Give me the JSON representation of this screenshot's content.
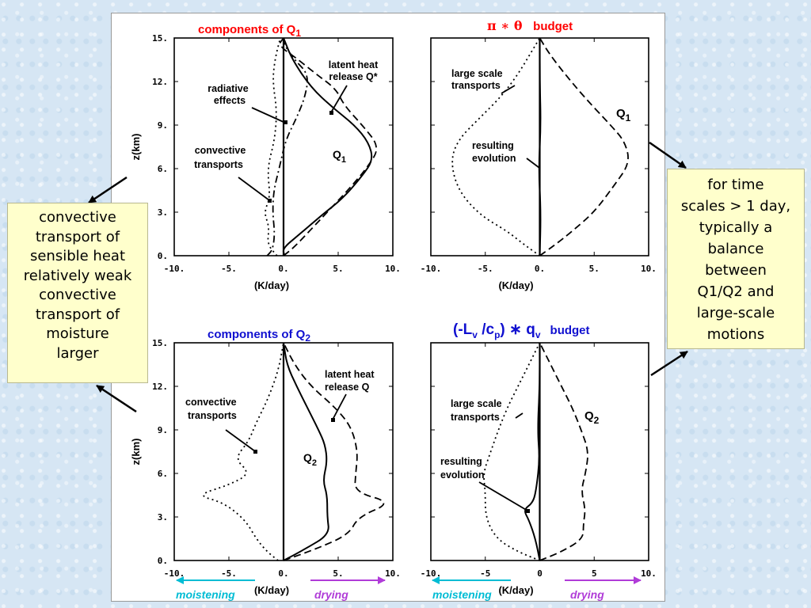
{
  "left_note": {
    "lines": [
      "convective",
      "transport of",
      "sensible heat",
      "relatively weak",
      "convective",
      "transport of",
      "moisture",
      "larger"
    ]
  },
  "right_note": {
    "lines": [
      "for time",
      "scales > 1 day,",
      "typically a",
      "balance",
      "between",
      "Q1/Q2 and",
      "large-scale",
      "motions"
    ]
  },
  "bottom_labels": {
    "moistening": "moistening",
    "drying": "drying",
    "moistening_color": "#00bcd4",
    "drying_color": "#b03cd8"
  },
  "colors": {
    "title_red": "#ff0000",
    "title_blue": "#1010d0"
  },
  "chart_data": [
    {
      "type": "line",
      "title": "components of Q1",
      "xlabel": "(K/day)",
      "ylabel": "z(km)",
      "xlim": [
        -10,
        10
      ],
      "ylim": [
        0,
        15
      ],
      "xticks": [
        "-10.",
        "-5.",
        "0.",
        "5.",
        "10."
      ],
      "yticks": [
        "0.",
        "3.",
        "6.",
        "9.",
        "12.",
        "15."
      ],
      "annotations": [
        "radiative effects",
        "latent heat release Q*",
        "convective transports",
        "Q1"
      ],
      "series": [
        {
          "style": "solid",
          "points": [
            [
              0.1,
              0
            ],
            [
              -0.1,
              0.5
            ],
            [
              1.5,
              1.5
            ],
            [
              3.5,
              2.8
            ],
            [
              5.5,
              4
            ],
            [
              7.2,
              5.5
            ],
            [
              8.2,
              6.6
            ],
            [
              7.8,
              7.8
            ],
            [
              6.5,
              9
            ],
            [
              4.5,
              10.2
            ],
            [
              2.5,
              11.6
            ],
            [
              0.8,
              13.5
            ],
            [
              0,
              15
            ]
          ]
        },
        {
          "style": "dashed",
          "points": [
            [
              0,
              0
            ],
            [
              1,
              0.6
            ],
            [
              2.5,
              1.8
            ],
            [
              4,
              3
            ],
            [
              6,
              4.6
            ],
            [
              7.8,
              6.2
            ],
            [
              8.8,
              7.5
            ],
            [
              7.2,
              9
            ],
            [
              5.5,
              10.4
            ],
            [
              4.8,
              11.5
            ],
            [
              3,
              12.5
            ],
            [
              1.2,
              13.6
            ],
            [
              -0.5,
              14.5
            ],
            [
              0,
              15
            ]
          ]
        },
        {
          "style": "dash-dot",
          "points": [
            [
              -1.5,
              0
            ],
            [
              -1,
              0.4
            ],
            [
              -0.8,
              1.5
            ],
            [
              -1,
              3
            ],
            [
              -0.9,
              4.5
            ],
            [
              -0.4,
              6
            ],
            [
              0.2,
              8
            ],
            [
              1.2,
              9.5
            ],
            [
              2,
              11
            ],
            [
              2.3,
              12.5
            ],
            [
              1,
              13.5
            ],
            [
              0,
              14.6
            ],
            [
              0,
              15
            ]
          ]
        },
        {
          "style": "dotted",
          "points": [
            [
              -0.6,
              0
            ],
            [
              -1.5,
              0.8
            ],
            [
              -1.3,
              2
            ],
            [
              -1.8,
              3
            ],
            [
              -1.2,
              4
            ],
            [
              -1.5,
              6
            ],
            [
              -0.8,
              8
            ],
            [
              -0.6,
              10
            ],
            [
              -1,
              12
            ],
            [
              -0.8,
              13.5
            ],
            [
              -0.3,
              15
            ]
          ]
        }
      ]
    },
    {
      "type": "line",
      "title": "π * θ budget",
      "xlabel": "(K/day)",
      "ylabel": "",
      "xlim": [
        -10,
        10
      ],
      "ylim": [
        0,
        15
      ],
      "xticks": [
        "-10.",
        "-5.",
        "0.",
        "5.",
        "10."
      ],
      "yticks": [],
      "annotations": [
        "large scale transports",
        "Q1",
        "resulting evolution"
      ],
      "series": [
        {
          "style": "dashed",
          "points": [
            [
              0,
              0
            ],
            [
              1.5,
              0.8
            ],
            [
              3,
              1.7
            ],
            [
              5,
              3
            ],
            [
              6.8,
              4.8
            ],
            [
              8.3,
              6.4
            ],
            [
              7.8,
              7.9
            ],
            [
              6.5,
              9
            ],
            [
              4,
              11
            ],
            [
              2,
              12.8
            ],
            [
              0.8,
              14
            ],
            [
              0,
              15
            ]
          ]
        },
        {
          "style": "dotted",
          "points": [
            [
              0,
              0
            ],
            [
              -1.5,
              0.8
            ],
            [
              -3,
              1.7
            ],
            [
              -5.5,
              2.8
            ],
            [
              -7.5,
              4.5
            ],
            [
              -8.2,
              6.5
            ],
            [
              -7.5,
              8
            ],
            [
              -5.5,
              9.5
            ],
            [
              -3.5,
              11
            ],
            [
              -2,
              12.5
            ],
            [
              -0.8,
              14
            ],
            [
              0,
              15
            ]
          ]
        },
        {
          "style": "solid",
          "points": [
            [
              0,
              0
            ],
            [
              0.1,
              3
            ],
            [
              -0.1,
              6
            ],
            [
              0.1,
              9
            ],
            [
              0,
              12
            ],
            [
              0,
              15
            ]
          ]
        }
      ]
    },
    {
      "type": "line",
      "title": "components of Q2",
      "xlabel": "(K/day)",
      "ylabel": "z(km)",
      "xlim": [
        -10,
        10
      ],
      "ylim": [
        0,
        15
      ],
      "xticks": [
        "-10.",
        "-5.",
        "0.",
        "5.",
        "10."
      ],
      "yticks": [
        "0.",
        "3.",
        "6.",
        "9.",
        "12.",
        "15."
      ],
      "annotations": [
        "convective transports",
        "latent heat release Q",
        "Q2"
      ],
      "series": [
        {
          "style": "dotted",
          "points": [
            [
              -0.5,
              0
            ],
            [
              -1.5,
              0.6
            ],
            [
              -2.5,
              1.5
            ],
            [
              -3.5,
              2.8
            ],
            [
              -5.5,
              4
            ],
            [
              -8,
              4.5
            ],
            [
              -5,
              5.2
            ],
            [
              -3,
              6
            ],
            [
              -4.5,
              7
            ],
            [
              -3.2,
              8.2
            ],
            [
              -2.5,
              9.5
            ],
            [
              -1.5,
              11
            ],
            [
              -0.5,
              13
            ],
            [
              0,
              15
            ]
          ]
        },
        {
          "style": "solid",
          "points": [
            [
              0,
              0
            ],
            [
              2,
              0.8
            ],
            [
              4.2,
              1.8
            ],
            [
              4,
              3
            ],
            [
              4,
              4.5
            ],
            [
              3.6,
              5.5
            ],
            [
              4,
              6.8
            ],
            [
              3.8,
              8
            ],
            [
              3.2,
              9
            ],
            [
              2.2,
              10.5
            ],
            [
              1.2,
              12
            ],
            [
              0.3,
              13.5
            ],
            [
              0,
              15
            ]
          ]
        },
        {
          "style": "dashed",
          "points": [
            [
              0,
              0
            ],
            [
              3,
              0.8
            ],
            [
              6,
              1.8
            ],
            [
              6.8,
              3
            ],
            [
              10,
              4
            ],
            [
              6.5,
              4.7
            ],
            [
              6.6,
              6
            ],
            [
              6.8,
              7.5
            ],
            [
              6.2,
              9.2
            ],
            [
              4.8,
              10.5
            ],
            [
              2.5,
              12
            ],
            [
              1,
              13.5
            ],
            [
              0,
              15
            ]
          ]
        }
      ]
    },
    {
      "type": "line",
      "title": "(-Lv /cp)* qv budget",
      "xlabel": "(K/day)",
      "ylabel": "",
      "xlim": [
        -10,
        10
      ],
      "ylim": [
        0,
        15
      ],
      "xticks": [
        "-10.",
        "-5",
        "0",
        "5",
        "10."
      ],
      "yticks": [],
      "annotations": [
        "large scale transports",
        "Q2",
        "resulting evolution"
      ],
      "series": [
        {
          "style": "dashed",
          "points": [
            [
              0,
              0
            ],
            [
              2,
              0.6
            ],
            [
              4,
              1.5
            ],
            [
              4,
              2.5
            ],
            [
              4.2,
              3.5
            ],
            [
              3.8,
              4.8
            ],
            [
              4.2,
              6
            ],
            [
              4.5,
              7.5
            ],
            [
              3.8,
              9
            ],
            [
              3,
              10.5
            ],
            [
              2,
              12
            ],
            [
              1,
              13.5
            ],
            [
              0,
              15
            ]
          ]
        },
        {
          "style": "dotted",
          "points": [
            [
              0,
              0
            ],
            [
              -2,
              0.6
            ],
            [
              -4,
              1.5
            ],
            [
              -5,
              3
            ],
            [
              -5,
              4.8
            ],
            [
              -5.2,
              6
            ],
            [
              -4.5,
              7.5
            ],
            [
              -3.8,
              9
            ],
            [
              -3,
              10.5
            ],
            [
              -2,
              12
            ],
            [
              -1,
              13.5
            ],
            [
              0,
              15
            ]
          ]
        },
        {
          "style": "solid",
          "points": [
            [
              0,
              0
            ],
            [
              -0.4,
              1.5
            ],
            [
              -1,
              2.8
            ],
            [
              -1.5,
              3.5
            ],
            [
              -0.6,
              4
            ],
            [
              -0.3,
              5
            ],
            [
              0,
              7
            ],
            [
              -0.2,
              9
            ],
            [
              0,
              12
            ],
            [
              0,
              15
            ]
          ]
        }
      ]
    }
  ]
}
